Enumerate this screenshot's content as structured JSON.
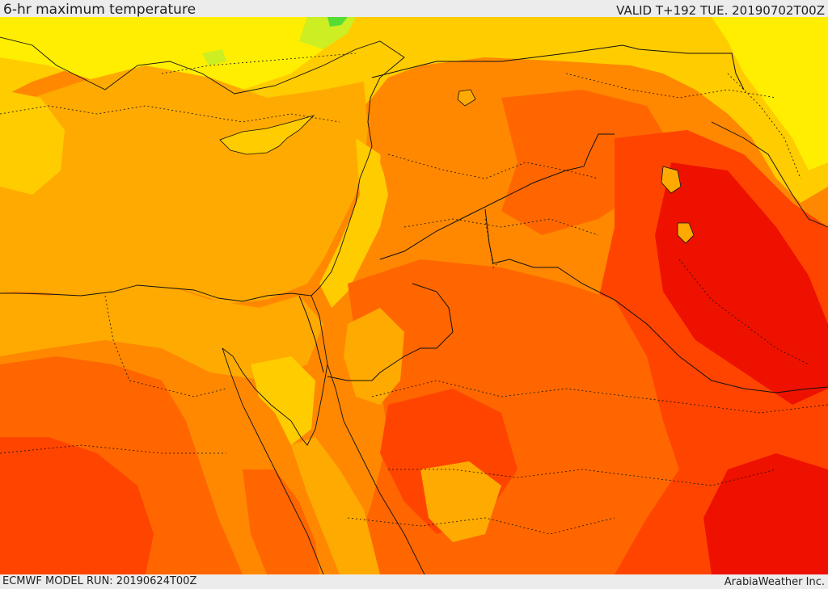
{
  "header": {
    "title": "6-hr maximum temperature",
    "valid": "VALID T+192 TUE. 20190702T00Z"
  },
  "footer": {
    "model_run": "ECMWF MODEL RUN: 20190624T00Z",
    "credit": "ArabiaWeather Inc."
  },
  "palette": {
    "green": "#55dd33",
    "yellow_green": "#ccee22",
    "yellow": "#ffee00",
    "gold": "#ffcc00",
    "amber": "#ffaa00",
    "orange": "#ff8800",
    "dark_orange": "#ff6600",
    "red_orange": "#ff4400",
    "red": "#ee1100",
    "border_line": "#111111"
  }
}
